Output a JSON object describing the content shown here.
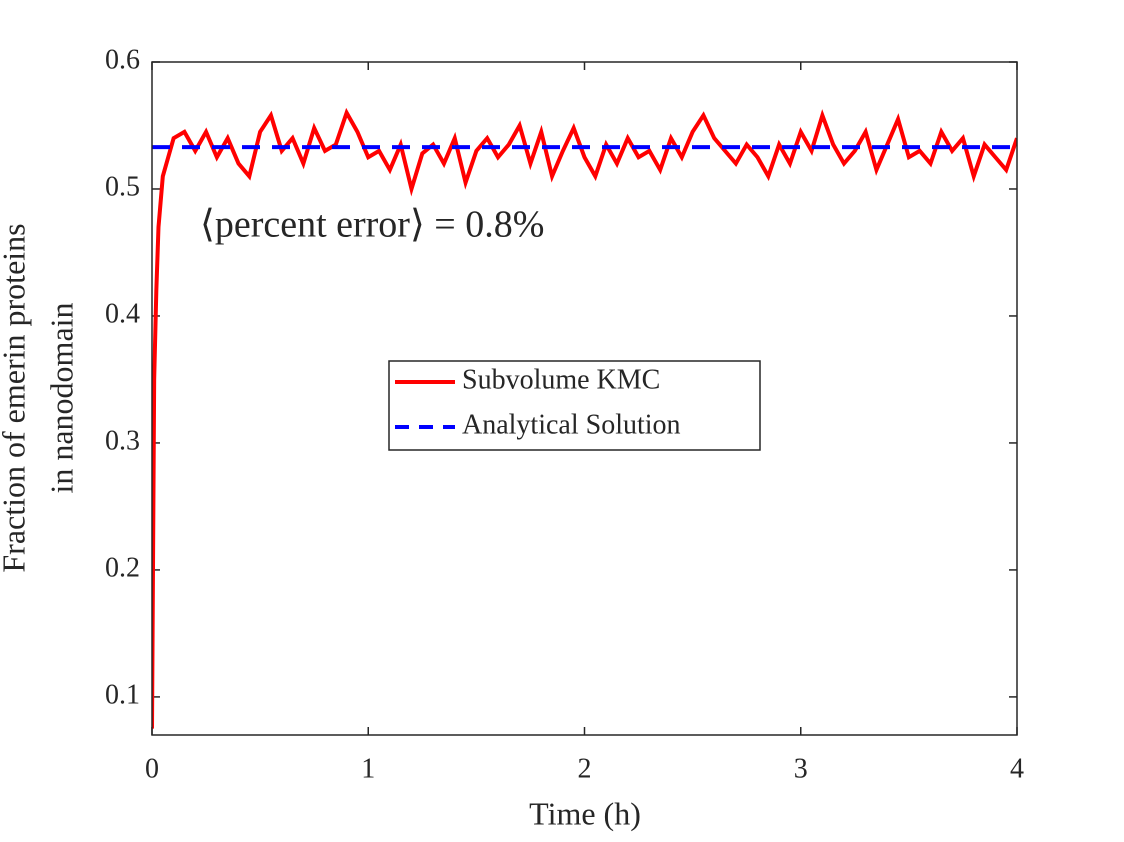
{
  "chart_data": {
    "type": "line",
    "xlabel": "Time (h)",
    "ylabel": [
      "Fraction of emerin proteins",
      "in nanodomain"
    ],
    "annotation": "⟨percent error⟩ = 0.8%",
    "xlim": [
      0,
      4
    ],
    "xticks": [
      0,
      1,
      2,
      3,
      4
    ],
    "ylim": [
      0.07,
      0.6
    ],
    "yticks": [
      0.1,
      0.2,
      0.3,
      0.4,
      0.5,
      0.6
    ],
    "grid": false,
    "legend": "center",
    "series": [
      {
        "name": "Subvolume KMC",
        "color": "#ff0000",
        "dash": false,
        "x": [
          0,
          0.01,
          0.02,
          0.03,
          0.05,
          0.075,
          0.1,
          0.15,
          0.2,
          0.25,
          0.3,
          0.35,
          0.4,
          0.45,
          0.5,
          0.55,
          0.6,
          0.65,
          0.7,
          0.75,
          0.8,
          0.85,
          0.9,
          0.95,
          1.0,
          1.05,
          1.1,
          1.15,
          1.2,
          1.25,
          1.3,
          1.35,
          1.4,
          1.45,
          1.5,
          1.55,
          1.6,
          1.65,
          1.7,
          1.75,
          1.8,
          1.85,
          1.9,
          1.95,
          2.0,
          2.05,
          2.1,
          2.15,
          2.2,
          2.25,
          2.3,
          2.35,
          2.4,
          2.45,
          2.5,
          2.55,
          2.6,
          2.65,
          2.7,
          2.75,
          2.8,
          2.85,
          2.9,
          2.95,
          3.0,
          3.05,
          3.1,
          3.15,
          3.2,
          3.25,
          3.3,
          3.35,
          3.4,
          3.45,
          3.5,
          3.55,
          3.6,
          3.65,
          3.7,
          3.75,
          3.8,
          3.85,
          3.9,
          3.95,
          4.0
        ],
        "values": [
          0.075,
          0.35,
          0.42,
          0.47,
          0.51,
          0.525,
          0.54,
          0.545,
          0.53,
          0.545,
          0.525,
          0.54,
          0.52,
          0.51,
          0.545,
          0.558,
          0.53,
          0.54,
          0.52,
          0.548,
          0.53,
          0.535,
          0.56,
          0.545,
          0.525,
          0.53,
          0.515,
          0.535,
          0.5,
          0.528,
          0.535,
          0.52,
          0.54,
          0.505,
          0.53,
          0.54,
          0.525,
          0.535,
          0.55,
          0.52,
          0.545,
          0.51,
          0.53,
          0.548,
          0.525,
          0.51,
          0.535,
          0.52,
          0.54,
          0.525,
          0.53,
          0.515,
          0.54,
          0.525,
          0.545,
          0.558,
          0.54,
          0.53,
          0.52,
          0.535,
          0.525,
          0.51,
          0.535,
          0.52,
          0.545,
          0.53,
          0.558,
          0.535,
          0.52,
          0.53,
          0.545,
          0.515,
          0.535,
          0.555,
          0.525,
          0.53,
          0.52,
          0.545,
          0.53,
          0.54,
          0.51,
          0.535,
          0.525,
          0.515,
          0.54
        ]
      },
      {
        "name": "Analytical Solution",
        "color": "#0000ff",
        "dash": true,
        "x": [
          0,
          4
        ],
        "values": [
          0.533,
          0.533
        ]
      }
    ]
  }
}
